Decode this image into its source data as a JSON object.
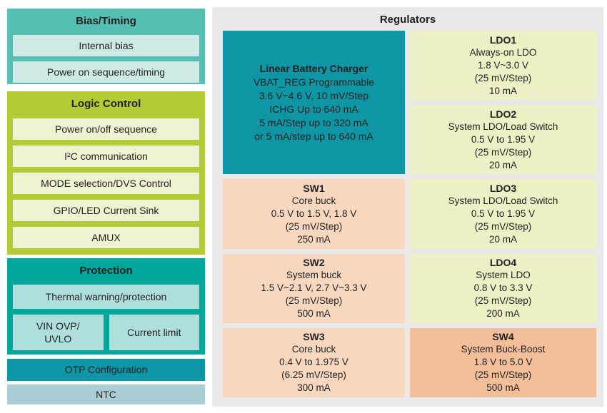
{
  "colors": {
    "bias": "#55bfb3",
    "biasItem": "#cdeae6",
    "logic": "#b3cb34",
    "logicItem": "#eff3d1",
    "protection": "#00a89c",
    "protectionItem": "#aedfdd",
    "otp": "#0d96a6",
    "ntc": "#abced4",
    "panel": "#e9e9e9",
    "charger": "#0e96a4",
    "ldo": "#eef0c5",
    "sw": "#f7d8be",
    "sw4": "#f2bf9a",
    "text": "#231f20"
  },
  "left_panel": {
    "groups": [
      {
        "title": "Bias/Timing",
        "items": [
          "Internal bias",
          "Power on sequence/timing"
        ]
      },
      {
        "title": "Logic Control",
        "items": [
          "Power on/off sequence",
          "I²C communication",
          "MODE selection/DVS Control",
          "GPIO/LED Current Sink",
          "AMUX"
        ]
      },
      {
        "title": "Protection",
        "full_item": "Thermal warning/protection",
        "left_item_lines": [
          "VIN OVP/",
          "UVLO"
        ],
        "right_item": "Current limit"
      }
    ],
    "bars": [
      {
        "label": "OTP Configuration"
      },
      {
        "label": "NTC"
      }
    ]
  },
  "regulators": {
    "title": "Regulators",
    "charger": {
      "name": "Linear Battery Charger",
      "lines": [
        "VBAT_REG Programmable",
        "3.6 V~4.6 V, 10 mV/Step",
        "ICHG Up to 640 mA",
        "5 mA/Step up to 320 mA",
        "or 5 mA/step up to 640 mA"
      ]
    },
    "blocks": [
      {
        "name": "LDO1",
        "lines": [
          "Always-on LDO",
          "1.8 V~3.0 V",
          "(25 mV/Step)",
          "10 mA"
        ]
      },
      {
        "name": "LDO2",
        "lines": [
          "System LDO/Load Switch",
          "0.5 V to 1.95 V",
          "(25 mV/Step)",
          "20 mA"
        ]
      },
      {
        "name": "SW1",
        "lines": [
          "Core buck",
          "0.5 V to 1.5 V, 1.8 V",
          "(25 mV/Step)",
          "250 mA"
        ]
      },
      {
        "name": "LDO3",
        "lines": [
          "System LDO/Load Switch",
          "0.5 V to 1.95 V",
          "(25 mV/Step)",
          "20 mA"
        ]
      },
      {
        "name": "SW2",
        "lines": [
          "System buck",
          "1.5 V~2.1 V, 2.7 V~3.3 V",
          "(25 mV/Step)",
          "500 mA"
        ]
      },
      {
        "name": "LDO4",
        "lines": [
          "System LDO",
          "0.8 V to 3.3 V",
          "(25 mV/Step)",
          "200 mA"
        ]
      },
      {
        "name": "SW3",
        "lines": [
          "Core buck",
          "0.4 V to 1.975 V",
          "(6.25 mV/Step)",
          "300 mA"
        ]
      },
      {
        "name": "SW4",
        "lines": [
          "System Buck-Boost",
          "1.8 V to 5.0 V",
          "(25 mV/Step)",
          "500 mA"
        ]
      }
    ]
  }
}
